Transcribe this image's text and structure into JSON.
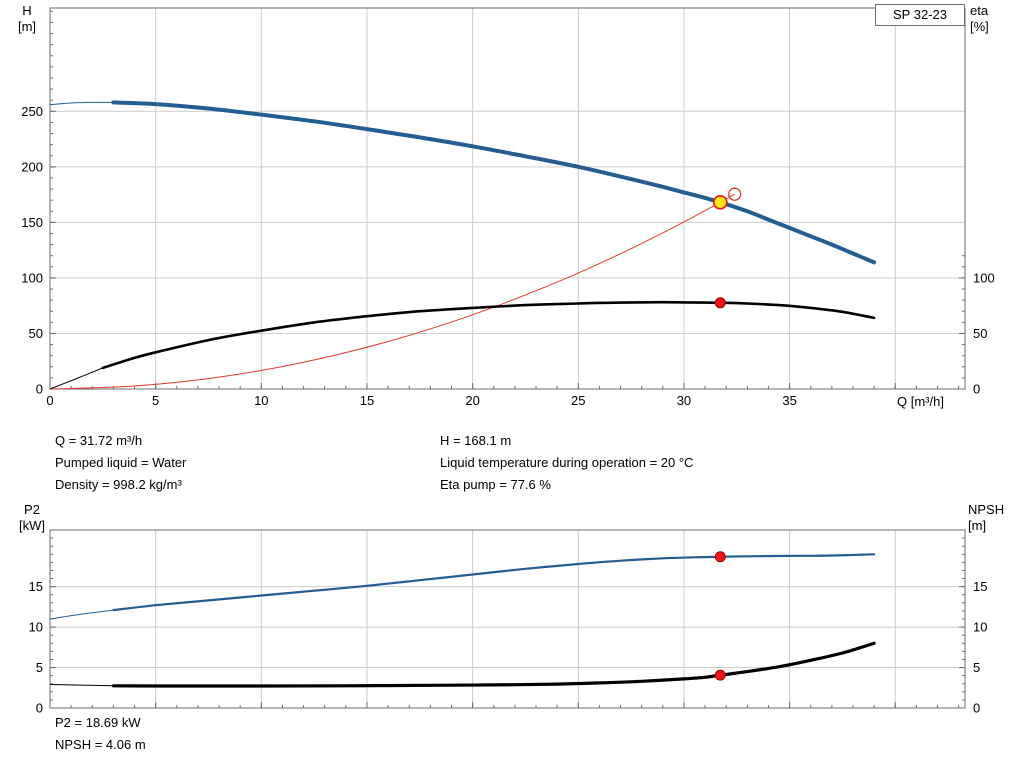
{
  "colors": {
    "background": "#ffffff",
    "curve_blue": "#245d92",
    "curve_black": "#000000",
    "curve_red": "#e03a2f",
    "marker_red_fill": "#f01414",
    "marker_red_stroke": "#9e0000",
    "marker_yellow_fill": "#ffe71c",
    "marker_yellow_stroke": "#f01414",
    "grid": "#cccccc",
    "frame": "#6e6e6e",
    "text": "#000000"
  },
  "info": {
    "left": [
      "Q = 31.72 m³/h",
      "Pumped liquid = Water",
      "Density = 998.2 kg/m³"
    ],
    "right": [
      "H = 168.1 m",
      "Liquid temperature during operation = 20 °C",
      "Eta pump = 77.6 %"
    ]
  },
  "footer": [
    "P2 = 18.69 kW",
    "NPSH = 4.06 m"
  ],
  "chart_data": [
    {
      "type": "line",
      "name": "qh-eta-chart",
      "title_box": "SP 32-23",
      "x_axis": {
        "label": "Q [m³/h]",
        "min": 0,
        "max": 43.3,
        "major_ticks": [
          0,
          5,
          10,
          15,
          20,
          25,
          30,
          35
        ],
        "grid_step": 5,
        "minor_step": 1
      },
      "y_left": {
        "label_lines": [
          "H",
          "[m]"
        ],
        "min": 0,
        "max": 343,
        "major_ticks": [
          0,
          50,
          100,
          150,
          200,
          250
        ],
        "minor_step": 10,
        "minor_max": 343
      },
      "y_right": {
        "label_lines": [
          "eta",
          "[%]"
        ],
        "major_ticks": [
          0,
          50,
          100
        ],
        "minor_step": 10,
        "minor_max": 120
      },
      "series": [
        {
          "name": "system-curve",
          "color_key": "curve_red",
          "width": 1,
          "points": [
            [
              0,
              0
            ],
            [
              4,
              2.7
            ],
            [
              8,
              10.7
            ],
            [
              12,
              24.1
            ],
            [
              16,
              42.8
            ],
            [
              20,
              66.8
            ],
            [
              24,
              96.2
            ],
            [
              27,
              121.8
            ],
            [
              29,
              140.5
            ],
            [
              31,
              160.6
            ],
            [
              31.72,
              168.1
            ],
            [
              32.4,
              175.4
            ]
          ]
        },
        {
          "name": "eta-curve",
          "color_key": "curve_black",
          "width": 2.6,
          "thin_width": 1,
          "thin_until": 2.5,
          "points": [
            [
              0,
              0
            ],
            [
              1.2,
              9
            ],
            [
              2.5,
              19
            ],
            [
              4,
              28
            ],
            [
              5,
              33
            ],
            [
              7.5,
              44
            ],
            [
              10,
              52.5
            ],
            [
              12.5,
              60
            ],
            [
              15,
              65.5
            ],
            [
              17.5,
              70
            ],
            [
              20,
              73
            ],
            [
              22.5,
              75.5
            ],
            [
              25,
              77
            ],
            [
              27,
              77.8
            ],
            [
              29,
              78.1
            ],
            [
              30,
              78
            ],
            [
              31.72,
              77.6
            ],
            [
              33,
              77
            ],
            [
              34.5,
              75.5
            ],
            [
              36,
              73
            ],
            [
              37.5,
              69.5
            ],
            [
              39,
              64
            ]
          ]
        },
        {
          "name": "qh-curve",
          "color_key": "curve_blue",
          "width": 4,
          "thin_width": 1,
          "thin_until": 3,
          "points": [
            [
              0,
              256
            ],
            [
              1,
              257.5
            ],
            [
              2,
              258
            ],
            [
              3,
              258
            ],
            [
              5,
              256.5
            ],
            [
              7.5,
              252.5
            ],
            [
              10,
              247
            ],
            [
              12.5,
              241
            ],
            [
              15,
              234
            ],
            [
              17.5,
              226.5
            ],
            [
              20,
              218.5
            ],
            [
              22.5,
              209.5
            ],
            [
              25,
              200
            ],
            [
              27.5,
              189
            ],
            [
              29,
              182
            ],
            [
              30,
              177
            ],
            [
              31,
              172
            ],
            [
              31.72,
              168.1
            ],
            [
              33,
              160
            ],
            [
              34,
              152.5
            ],
            [
              35,
              145
            ],
            [
              36,
              137.5
            ],
            [
              37,
              130
            ],
            [
              38,
              122
            ],
            [
              39,
              114
            ]
          ]
        }
      ],
      "markers": [
        {
          "name": "system-end-marker",
          "x": 32.4,
          "y": 175.4,
          "r": 6,
          "stroke_key": "curve_red",
          "sw": 1.3
        },
        {
          "name": "duty-point-qh",
          "x": 31.72,
          "y": 168.1,
          "r": 6.5,
          "fill_key": "marker_yellow_fill",
          "stroke_key": "marker_yellow_stroke",
          "sw": 1.6
        },
        {
          "name": "duty-point-eta",
          "x": 31.72,
          "y": 77.6,
          "r": 5,
          "fill_key": "marker_red_fill",
          "stroke_key": "marker_red_stroke",
          "sw": 1
        }
      ]
    },
    {
      "type": "line",
      "name": "p2-npsh-chart",
      "x_axis": {
        "label": "",
        "min": 0,
        "max": 43.3,
        "major_ticks": [],
        "grid_step": 5,
        "minor_step": 1
      },
      "y_left": {
        "label_lines": [
          "P2",
          "[kW]"
        ],
        "min": 0,
        "max": 22,
        "major_ticks": [
          0,
          5,
          10,
          15
        ],
        "minor_step": 1,
        "minor_max": 22
      },
      "y_right": {
        "label_lines": [
          "NPSH",
          "[m]"
        ],
        "major_ticks": [
          0,
          5,
          10,
          15
        ],
        "minor_step": 1,
        "minor_max": 22
      },
      "series": [
        {
          "name": "p2-curve",
          "color_key": "curve_blue",
          "width": 2.2,
          "thin_width": 1,
          "thin_until": 3,
          "points": [
            [
              0,
              11
            ],
            [
              1.5,
              11.6
            ],
            [
              3,
              12.1
            ],
            [
              5,
              12.7
            ],
            [
              7.5,
              13.3
            ],
            [
              10,
              13.9
            ],
            [
              12.5,
              14.5
            ],
            [
              15,
              15.1
            ],
            [
              17.5,
              15.8
            ],
            [
              20,
              16.5
            ],
            [
              22.5,
              17.2
            ],
            [
              25,
              17.8
            ],
            [
              27,
              18.2
            ],
            [
              29,
              18.5
            ],
            [
              30.5,
              18.62
            ],
            [
              31.72,
              18.69
            ],
            [
              33,
              18.75
            ],
            [
              35,
              18.8
            ],
            [
              37,
              18.85
            ],
            [
              39,
              19
            ]
          ]
        },
        {
          "name": "npsh-curve",
          "color_key": "curve_black",
          "width": 3.2,
          "thin_width": 1,
          "thin_until": 3,
          "points": [
            [
              0,
              2.9
            ],
            [
              3,
              2.75
            ],
            [
              6,
              2.72
            ],
            [
              10,
              2.72
            ],
            [
              14,
              2.75
            ],
            [
              18,
              2.8
            ],
            [
              21,
              2.85
            ],
            [
              24,
              2.95
            ],
            [
              26,
              3.1
            ],
            [
              28,
              3.3
            ],
            [
              30,
              3.6
            ],
            [
              31,
              3.8
            ],
            [
              31.72,
              4.06
            ],
            [
              33,
              4.5
            ],
            [
              34.5,
              5.1
            ],
            [
              36,
              5.9
            ],
            [
              37.5,
              6.8
            ],
            [
              39,
              8
            ]
          ]
        }
      ],
      "markers": [
        {
          "name": "duty-point-p2",
          "x": 31.72,
          "y": 18.69,
          "r": 5,
          "fill_key": "marker_red_fill",
          "stroke_key": "marker_red_stroke",
          "sw": 1
        },
        {
          "name": "duty-point-npsh",
          "x": 31.72,
          "y": 4.06,
          "r": 5,
          "fill_key": "marker_red_fill",
          "stroke_key": "marker_red_stroke",
          "sw": 1
        }
      ]
    }
  ]
}
